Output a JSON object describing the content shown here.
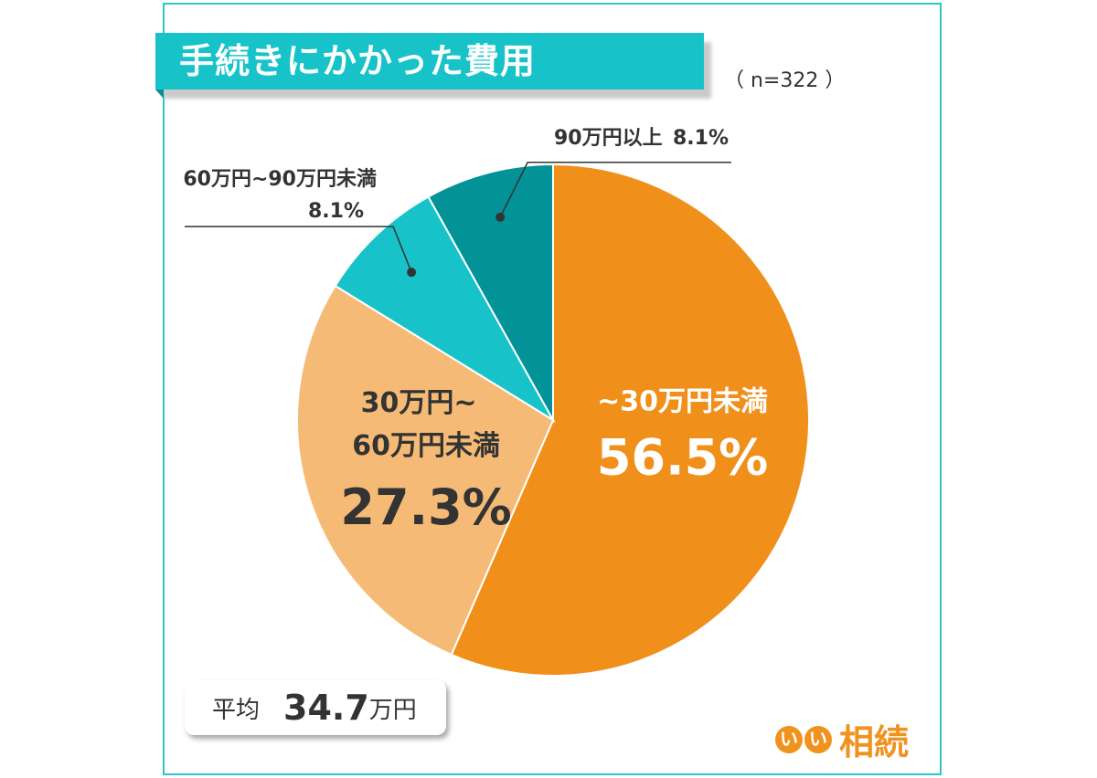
{
  "title": "手続きにかかった費用",
  "sample": "（ n=322 ）",
  "average": {
    "label": "平均",
    "value": "34.7",
    "unit": "万円"
  },
  "logo": {
    "circle1": "い",
    "circle2": "い",
    "text": "相続"
  },
  "colors": {
    "accent": "#17c3c8",
    "frame": "#2ec4c9",
    "logo": "#f0921e"
  },
  "chart_data": {
    "type": "pie",
    "title": "手続きにかかった費用",
    "slices": [
      {
        "label": "~30万円未満",
        "value": 56.5,
        "value_label": "56.5%",
        "color": "#f0901b"
      },
      {
        "label": "30万円~60万円未満",
        "label_line1": "30万円~",
        "label_line2": "60万円未満",
        "value": 27.3,
        "value_label": "27.3%",
        "color": "#f5bb76"
      },
      {
        "label": "60万円~90万円未満",
        "value": 8.1,
        "value_label": "8.1%",
        "color": "#17c3c8"
      },
      {
        "label": "90万円以上",
        "value": 8.1,
        "value_label": "8.1%",
        "color": "#029297"
      }
    ]
  }
}
